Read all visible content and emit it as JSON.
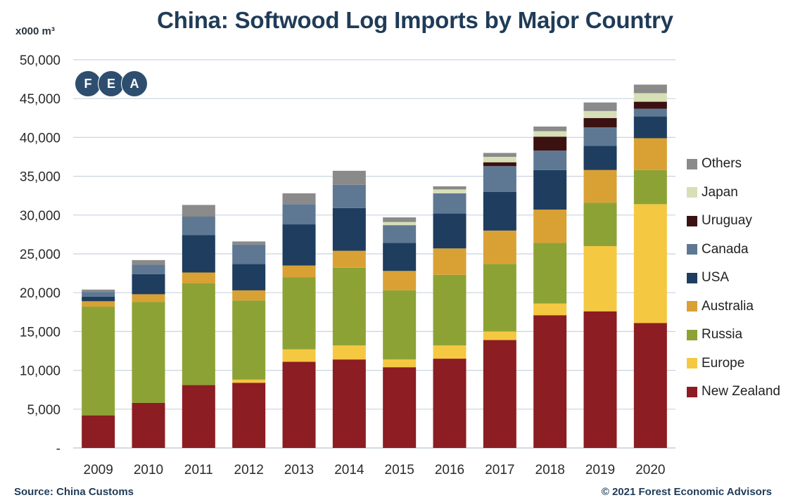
{
  "header": {
    "title": "China: Softwood Log Imports by Major Country",
    "unit": "x000 m³"
  },
  "logo": {
    "letters": [
      "F",
      "E",
      "A"
    ]
  },
  "footer": {
    "source": "Source: China Customs",
    "copyright": "© 2021 Forest Economic Advisors"
  },
  "chart_data": {
    "type": "bar",
    "stacked": true,
    "title": "China: Softwood Log Imports by Major Country",
    "ylabel": "x000 m³",
    "ylim": [
      0,
      50000
    ],
    "y_ticks": [
      0,
      5000,
      10000,
      15000,
      20000,
      25000,
      30000,
      35000,
      40000,
      45000,
      50000
    ],
    "y_tick_labels": [
      "-",
      "5,000",
      "10,000",
      "15,000",
      "20,000",
      "25,000",
      "30,000",
      "35,000",
      "40,000",
      "45,000",
      "50,000"
    ],
    "grid": true,
    "legend_position": "right",
    "categories": [
      "2009",
      "2010",
      "2011",
      "2012",
      "2013",
      "2014",
      "2015",
      "2016",
      "2017",
      "2018",
      "2019",
      "2020"
    ],
    "series": [
      {
        "name": "New Zealand",
        "color": "#8c1d22",
        "values": [
          4200,
          5800,
          8100,
          8400,
          11100,
          11400,
          10400,
          11500,
          13900,
          17100,
          17600,
          16100
        ]
      },
      {
        "name": "Europe",
        "color": "#f5c842",
        "values": [
          0,
          0,
          0,
          400,
          1600,
          1800,
          1000,
          1700,
          1100,
          1500,
          8400,
          15300
        ]
      },
      {
        "name": "Russia",
        "color": "#8da235",
        "values": [
          14000,
          13000,
          13100,
          10200,
          9300,
          10000,
          8900,
          9100,
          8700,
          7800,
          5600,
          4400
        ]
      },
      {
        "name": "Australia",
        "color": "#d9a134",
        "values": [
          700,
          1000,
          1400,
          1300,
          1500,
          2200,
          2500,
          3400,
          4300,
          4300,
          4200,
          4100
        ]
      },
      {
        "name": "USA",
        "color": "#1e3d5f",
        "values": [
          600,
          2600,
          4800,
          3400,
          5300,
          5500,
          3600,
          4500,
          5000,
          5100,
          3100,
          2800
        ]
      },
      {
        "name": "Canada",
        "color": "#5e7893",
        "values": [
          600,
          1200,
          2400,
          2500,
          2600,
          3000,
          2300,
          2600,
          3300,
          2500,
          2400,
          1000
        ]
      },
      {
        "name": "Uruguay",
        "color": "#3b1211",
        "values": [
          0,
          0,
          0,
          0,
          0,
          0,
          0,
          0,
          500,
          1800,
          1200,
          900
        ]
      },
      {
        "name": "Japan",
        "color": "#d7dfb6",
        "values": [
          0,
          0,
          0,
          0,
          0,
          0,
          400,
          500,
          700,
          700,
          900,
          1100
        ]
      },
      {
        "name": "Others",
        "color": "#8a8a8a",
        "values": [
          300,
          600,
          1500,
          400,
          1400,
          1800,
          600,
          400,
          500,
          600,
          1100,
          1100
        ]
      }
    ]
  }
}
